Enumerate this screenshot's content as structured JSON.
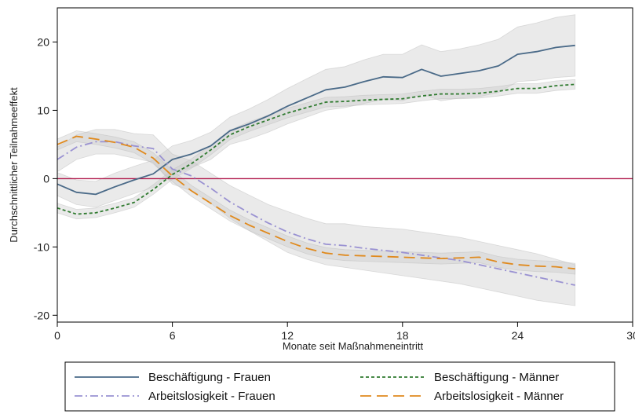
{
  "chart_data": {
    "type": "line",
    "xlabel": "Monate seit Maßnahmeneintritt",
    "ylabel": "Durchschnittlicher Teilnahmeeffekt",
    "xlim": [
      0,
      30
    ],
    "ylim": [
      -21,
      25
    ],
    "x_ticks": [
      0,
      6,
      12,
      18,
      24,
      30
    ],
    "y_ticks": [
      -20,
      -10,
      0,
      10,
      20
    ],
    "reference_line": {
      "y": 0,
      "color": "#b0174a"
    },
    "x": [
      0,
      1,
      2,
      3,
      4,
      5,
      6,
      7,
      8,
      9,
      10,
      11,
      12,
      13,
      14,
      15,
      16,
      17,
      18,
      19,
      20,
      21,
      22,
      23,
      24,
      25,
      26,
      27
    ],
    "legend_position": "bottom",
    "series": [
      {
        "name": "Beschäftigung - Frauen",
        "color": "#4a6a88",
        "dash": "solid",
        "values": [
          -0.8,
          -2.0,
          -2.3,
          -1.2,
          -0.2,
          0.7,
          2.8,
          3.6,
          4.8,
          7.0,
          8.0,
          9.2,
          10.6,
          11.8,
          13.0,
          13.4,
          14.2,
          14.9,
          14.8,
          16.0,
          15.0,
          15.4,
          15.8,
          16.5,
          18.2,
          18.6,
          19.2,
          19.5
        ],
        "ci_lower": [
          -2.5,
          -3.8,
          -4.2,
          -3.2,
          -2.2,
          -1.3,
          0.8,
          1.6,
          2.8,
          5.0,
          5.8,
          6.8,
          8.0,
          9.0,
          10.0,
          10.4,
          11.0,
          11.6,
          11.4,
          12.4,
          11.4,
          11.8,
          12.0,
          12.6,
          14.2,
          14.4,
          14.8,
          15.0
        ],
        "ci_upper": [
          0.9,
          -0.2,
          -0.4,
          0.8,
          1.8,
          2.7,
          4.8,
          5.6,
          6.8,
          9.0,
          10.2,
          11.6,
          13.2,
          14.6,
          16.0,
          16.4,
          17.4,
          18.2,
          18.2,
          19.6,
          18.6,
          19.0,
          19.6,
          20.4,
          22.2,
          22.8,
          23.6,
          24.0
        ]
      },
      {
        "name": "Beschäftigung - Männer",
        "color": "#2f7a2f",
        "dash": "dotted",
        "values": [
          -4.3,
          -5.2,
          -5.0,
          -4.3,
          -3.5,
          -1.6,
          0.6,
          2.2,
          4.2,
          6.4,
          7.6,
          8.6,
          9.6,
          10.4,
          11.2,
          11.3,
          11.5,
          11.6,
          11.7,
          12.1,
          12.4,
          12.4,
          12.5,
          12.8,
          13.2,
          13.2,
          13.6,
          13.8
        ],
        "ci_lower": [
          -5.0,
          -5.9,
          -5.7,
          -5.0,
          -4.2,
          -2.3,
          -0.1,
          1.5,
          3.5,
          5.7,
          6.9,
          7.9,
          8.9,
          9.7,
          10.5,
          10.6,
          10.8,
          10.9,
          11.0,
          11.4,
          11.7,
          11.7,
          11.8,
          12.1,
          12.5,
          12.5,
          12.9,
          13.1
        ],
        "ci_upper": [
          -3.6,
          -4.5,
          -4.3,
          -3.6,
          -2.8,
          -0.9,
          1.3,
          2.9,
          4.9,
          7.1,
          8.3,
          9.3,
          10.3,
          11.1,
          11.9,
          12.0,
          12.2,
          12.3,
          12.4,
          12.8,
          13.1,
          13.1,
          13.2,
          13.5,
          13.9,
          13.9,
          14.3,
          14.5
        ]
      },
      {
        "name": "Arbeitslosigkeit - Frauen",
        "color": "#9a92d2",
        "dash": "dashdot",
        "values": [
          2.8,
          4.6,
          5.4,
          5.4,
          4.8,
          4.4,
          1.4,
          0.4,
          -1.4,
          -3.4,
          -5.0,
          -6.5,
          -7.8,
          -8.8,
          -9.6,
          -9.8,
          -10.2,
          -10.5,
          -10.8,
          -11.2,
          -11.6,
          -12.0,
          -12.6,
          -13.2,
          -13.8,
          -14.4,
          -15.0,
          -15.6
        ],
        "ci_lower": [
          1.0,
          2.8,
          3.6,
          3.6,
          3.0,
          2.4,
          -0.8,
          -1.8,
          -3.6,
          -5.8,
          -7.6,
          -9.2,
          -10.8,
          -11.8,
          -12.6,
          -13.0,
          -13.4,
          -13.8,
          -14.2,
          -14.6,
          -15.0,
          -15.4,
          -16.0,
          -16.6,
          -17.2,
          -17.8,
          -18.2,
          -18.6
        ],
        "ci_upper": [
          4.6,
          6.4,
          7.2,
          7.2,
          6.6,
          6.4,
          3.6,
          2.6,
          0.8,
          -1.0,
          -2.4,
          -3.8,
          -4.8,
          -5.8,
          -6.6,
          -6.6,
          -7.0,
          -7.2,
          -7.4,
          -7.8,
          -8.2,
          -8.6,
          -9.2,
          -9.8,
          -10.4,
          -11.0,
          -11.8,
          -12.6
        ]
      },
      {
        "name": "Arbeitslosigkeit - Männer",
        "color": "#e08a1e",
        "dash": "longdash",
        "values": [
          5.0,
          6.2,
          5.8,
          5.3,
          4.6,
          3.0,
          0.4,
          -1.8,
          -3.6,
          -5.4,
          -6.8,
          -8.0,
          -9.2,
          -10.2,
          -10.9,
          -11.2,
          -11.3,
          -11.4,
          -11.5,
          -11.6,
          -11.7,
          -11.6,
          -11.5,
          -12.2,
          -12.6,
          -12.8,
          -12.9,
          -13.2
        ],
        "ci_lower": [
          4.2,
          5.4,
          5.0,
          4.5,
          3.8,
          2.2,
          -0.4,
          -2.6,
          -4.4,
          -6.2,
          -7.6,
          -8.8,
          -10.0,
          -11.0,
          -11.7,
          -12.0,
          -12.1,
          -12.2,
          -12.3,
          -12.4,
          -12.5,
          -12.4,
          -12.3,
          -13.0,
          -13.4,
          -13.6,
          -13.7,
          -14.0
        ],
        "ci_upper": [
          5.8,
          7.0,
          6.6,
          6.1,
          5.4,
          3.8,
          1.2,
          -1.0,
          -2.8,
          -4.6,
          -6.0,
          -7.2,
          -8.4,
          -9.4,
          -10.1,
          -10.4,
          -10.5,
          -10.6,
          -10.7,
          -10.8,
          -10.9,
          -10.8,
          -10.7,
          -11.4,
          -11.8,
          -12.0,
          -12.1,
          -12.4
        ]
      }
    ]
  }
}
